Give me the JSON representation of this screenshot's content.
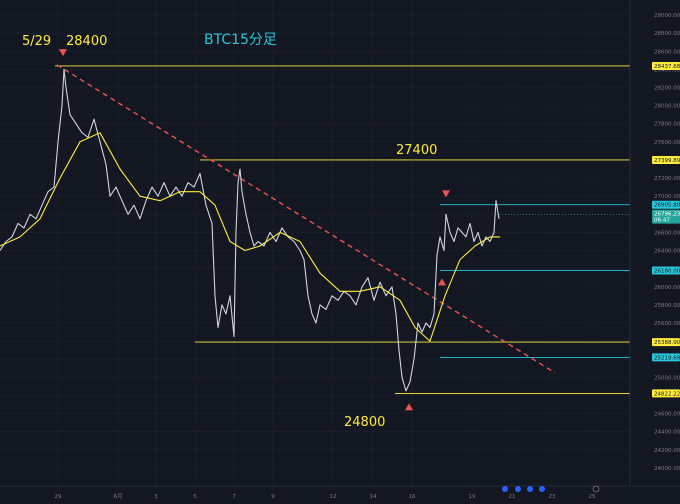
{
  "chart_data": {
    "type": "line",
    "title": "BTC15分足",
    "annotations": {
      "high_date": "5/29",
      "high_value": "28400",
      "mid_value": "27400",
      "low_value": "24800"
    },
    "x_ticks": [
      "29",
      "6月",
      "3",
      "5",
      "7",
      "9",
      "12",
      "14",
      "16",
      "19",
      "21",
      "23",
      "25"
    ],
    "y_ticks": [
      29000,
      28800,
      28600,
      28400,
      28200,
      28000,
      27800,
      27600,
      27400,
      27200,
      27000,
      26800,
      26600,
      26400,
      26200,
      26000,
      25800,
      25600,
      25400,
      25200,
      25000,
      24800,
      24600,
      24400,
      24200,
      24000
    ],
    "ylim": [
      23800,
      29100
    ],
    "price_series": [
      {
        "x": 0,
        "y": 26400
      },
      {
        "x": 6,
        "y": 26500
      },
      {
        "x": 12,
        "y": 26550
      },
      {
        "x": 18,
        "y": 26700
      },
      {
        "x": 24,
        "y": 26650
      },
      {
        "x": 30,
        "y": 26800
      },
      {
        "x": 36,
        "y": 26750
      },
      {
        "x": 42,
        "y": 26900
      },
      {
        "x": 48,
        "y": 27050
      },
      {
        "x": 54,
        "y": 27100
      },
      {
        "x": 58,
        "y": 27600
      },
      {
        "x": 62,
        "y": 28000
      },
      {
        "x": 64,
        "y": 28400
      },
      {
        "x": 66,
        "y": 28200
      },
      {
        "x": 70,
        "y": 27900
      },
      {
        "x": 76,
        "y": 27800
      },
      {
        "x": 82,
        "y": 27700
      },
      {
        "x": 88,
        "y": 27650
      },
      {
        "x": 94,
        "y": 27850
      },
      {
        "x": 100,
        "y": 27600
      },
      {
        "x": 106,
        "y": 27350
      },
      {
        "x": 110,
        "y": 27000
      },
      {
        "x": 116,
        "y": 27100
      },
      {
        "x": 122,
        "y": 26950
      },
      {
        "x": 128,
        "y": 26800
      },
      {
        "x": 134,
        "y": 26900
      },
      {
        "x": 140,
        "y": 26750
      },
      {
        "x": 146,
        "y": 26950
      },
      {
        "x": 152,
        "y": 27100
      },
      {
        "x": 158,
        "y": 27000
      },
      {
        "x": 164,
        "y": 27150
      },
      {
        "x": 170,
        "y": 27000
      },
      {
        "x": 176,
        "y": 27100
      },
      {
        "x": 182,
        "y": 27000
      },
      {
        "x": 188,
        "y": 27150
      },
      {
        "x": 194,
        "y": 27100
      },
      {
        "x": 200,
        "y": 27250
      },
      {
        "x": 206,
        "y": 26900
      },
      {
        "x": 212,
        "y": 26700
      },
      {
        "x": 215,
        "y": 25900
      },
      {
        "x": 218,
        "y": 25550
      },
      {
        "x": 222,
        "y": 25800
      },
      {
        "x": 226,
        "y": 25700
      },
      {
        "x": 230,
        "y": 25900
      },
      {
        "x": 234,
        "y": 25450
      },
      {
        "x": 236,
        "y": 26600
      },
      {
        "x": 238,
        "y": 27150
      },
      {
        "x": 240,
        "y": 27300
      },
      {
        "x": 242,
        "y": 27050
      },
      {
        "x": 246,
        "y": 26800
      },
      {
        "x": 250,
        "y": 26600
      },
      {
        "x": 254,
        "y": 26450
      },
      {
        "x": 258,
        "y": 26500
      },
      {
        "x": 264,
        "y": 26450
      },
      {
        "x": 270,
        "y": 26600
      },
      {
        "x": 276,
        "y": 26500
      },
      {
        "x": 282,
        "y": 26650
      },
      {
        "x": 288,
        "y": 26550
      },
      {
        "x": 294,
        "y": 26500
      },
      {
        "x": 300,
        "y": 26400
      },
      {
        "x": 304,
        "y": 26300
      },
      {
        "x": 308,
        "y": 25900
      },
      {
        "x": 312,
        "y": 25700
      },
      {
        "x": 316,
        "y": 25600
      },
      {
        "x": 320,
        "y": 25800
      },
      {
        "x": 326,
        "y": 25750
      },
      {
        "x": 332,
        "y": 25900
      },
      {
        "x": 338,
        "y": 25850
      },
      {
        "x": 344,
        "y": 25950
      },
      {
        "x": 350,
        "y": 25900
      },
      {
        "x": 356,
        "y": 25800
      },
      {
        "x": 362,
        "y": 26000
      },
      {
        "x": 368,
        "y": 26100
      },
      {
        "x": 374,
        "y": 25850
      },
      {
        "x": 380,
        "y": 26050
      },
      {
        "x": 386,
        "y": 25900
      },
      {
        "x": 392,
        "y": 26000
      },
      {
        "x": 396,
        "y": 25700
      },
      {
        "x": 399,
        "y": 25300
      },
      {
        "x": 402,
        "y": 25000
      },
      {
        "x": 406,
        "y": 24850
      },
      {
        "x": 410,
        "y": 24950
      },
      {
        "x": 414,
        "y": 25200
      },
      {
        "x": 418,
        "y": 25600
      },
      {
        "x": 422,
        "y": 25500
      },
      {
        "x": 426,
        "y": 25600
      },
      {
        "x": 430,
        "y": 25550
      },
      {
        "x": 434,
        "y": 25700
      },
      {
        "x": 437,
        "y": 26350
      },
      {
        "x": 440,
        "y": 26550
      },
      {
        "x": 444,
        "y": 26400
      },
      {
        "x": 446,
        "y": 26800
      },
      {
        "x": 450,
        "y": 26600
      },
      {
        "x": 454,
        "y": 26500
      },
      {
        "x": 458,
        "y": 26650
      },
      {
        "x": 462,
        "y": 26600
      },
      {
        "x": 466,
        "y": 26550
      },
      {
        "x": 470,
        "y": 26700
      },
      {
        "x": 474,
        "y": 26500
      },
      {
        "x": 478,
        "y": 26600
      },
      {
        "x": 482,
        "y": 26450
      },
      {
        "x": 486,
        "y": 26550
      },
      {
        "x": 490,
        "y": 26500
      },
      {
        "x": 494,
        "y": 26600
      },
      {
        "x": 496,
        "y": 26950
      },
      {
        "x": 499,
        "y": 26750
      }
    ],
    "ma_series": [
      {
        "x": 0,
        "y": 26450
      },
      {
        "x": 20,
        "y": 26550
      },
      {
        "x": 40,
        "y": 26750
      },
      {
        "x": 60,
        "y": 27200
      },
      {
        "x": 80,
        "y": 27600
      },
      {
        "x": 100,
        "y": 27700
      },
      {
        "x": 120,
        "y": 27300
      },
      {
        "x": 140,
        "y": 27000
      },
      {
        "x": 160,
        "y": 26950
      },
      {
        "x": 180,
        "y": 27050
      },
      {
        "x": 200,
        "y": 27050
      },
      {
        "x": 215,
        "y": 26900
      },
      {
        "x": 230,
        "y": 26500
      },
      {
        "x": 245,
        "y": 26400
      },
      {
        "x": 260,
        "y": 26450
      },
      {
        "x": 280,
        "y": 26600
      },
      {
        "x": 300,
        "y": 26500
      },
      {
        "x": 320,
        "y": 26150
      },
      {
        "x": 340,
        "y": 25950
      },
      {
        "x": 360,
        "y": 25950
      },
      {
        "x": 380,
        "y": 26000
      },
      {
        "x": 400,
        "y": 25850
      },
      {
        "x": 415,
        "y": 25550
      },
      {
        "x": 430,
        "y": 25400
      },
      {
        "x": 445,
        "y": 25900
      },
      {
        "x": 460,
        "y": 26300
      },
      {
        "x": 475,
        "y": 26450
      },
      {
        "x": 490,
        "y": 26550
      },
      {
        "x": 500,
        "y": 26550
      }
    ],
    "horizontal_levels": [
      {
        "value": 28437.68,
        "label": "28437.68",
        "color": "#ffeb3b",
        "x_start": 55
      },
      {
        "value": 27399.89,
        "label": "27399.89",
        "color": "#ffeb3b",
        "x_start": 200
      },
      {
        "value": 26905.8,
        "label": "26905.80",
        "color": "#26c6da",
        "x_start": 440
      },
      {
        "value": 26180.0,
        "label": "26180.00",
        "color": "#26c6da",
        "x_start": 440
      },
      {
        "value": 25388.9,
        "label": "25388.90",
        "color": "#ffeb3b",
        "x_start": 195
      },
      {
        "value": 25219.69,
        "label": "25219.69",
        "color": "#26c6da",
        "x_start": 440
      },
      {
        "value": 24822.22,
        "label": "24822.22",
        "color": "#ffeb3b",
        "x_start": 395
      }
    ],
    "current_price": {
      "value": 26796.23,
      "label": "26796.23",
      "time": "06:47",
      "color": "#26a69a"
    },
    "trendline": {
      "from": {
        "x": 57,
        "y": 28450
      },
      "to": {
        "x": 555,
        "y": 25050
      },
      "color": "#ef5350",
      "style": "dashed"
    },
    "markers": [
      {
        "kind": "down",
        "x": 63,
        "y": 28580
      },
      {
        "kind": "down",
        "x": 446,
        "y": 27020
      },
      {
        "kind": "up",
        "x": 442,
        "y": 26060
      },
      {
        "kind": "up",
        "x": 409,
        "y": 24680
      }
    ],
    "colors": {
      "background": "#131722",
      "price_line": "#d1d4dc",
      "ma_line": "#ffeb3b",
      "grid": "#1e222d"
    },
    "grid": true
  }
}
